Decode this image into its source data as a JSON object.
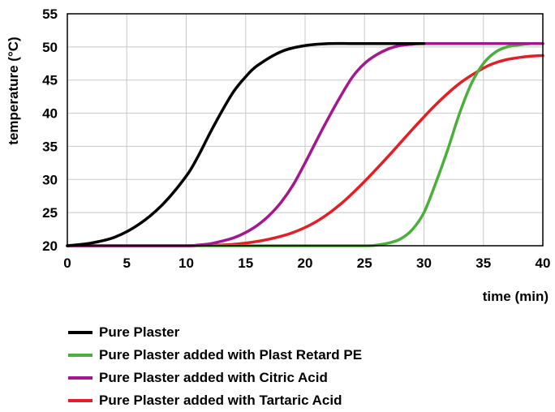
{
  "chart_data": {
    "type": "line",
    "title": "",
    "xlabel": "time (min)",
    "ylabel": "temperature (°C)",
    "xlim": [
      0,
      40
    ],
    "ylim": [
      20,
      55
    ],
    "xticks": [
      0,
      5,
      10,
      15,
      20,
      25,
      30,
      35,
      40
    ],
    "yticks": [
      20,
      25,
      30,
      35,
      40,
      45,
      50,
      55
    ],
    "grid": true,
    "legend_position": "bottom",
    "series": [
      {
        "name": "Pure Plaster",
        "color": "#000000",
        "x": [
          0,
          2,
          4,
          6,
          8,
          10,
          11,
          12,
          13,
          14,
          15,
          16,
          18,
          20,
          22,
          24,
          26,
          28,
          30
        ],
        "y": [
          20,
          20.4,
          21.3,
          23.2,
          26.2,
          30.5,
          33.5,
          37,
          40.3,
          43.3,
          45.5,
          47.2,
          49.3,
          50.2,
          50.5,
          50.5,
          50.5,
          50.5,
          50.5
        ]
      },
      {
        "name": "Pure Plaster added with Plast Retard PE",
        "color": "#4caf3c",
        "x": [
          0,
          10,
          20,
          25,
          26,
          27,
          28,
          29,
          30,
          31,
          32,
          33,
          34,
          35,
          36,
          37,
          38,
          39,
          40
        ],
        "y": [
          20,
          20,
          20,
          20,
          20.1,
          20.4,
          21,
          22.4,
          25,
          29.5,
          34.5,
          40,
          44.5,
          47.5,
          49.2,
          50,
          50.3,
          50.5,
          50.5
        ]
      },
      {
        "name": "Pure Plaster added with Citric Acid",
        "color": "#a3178f",
        "x": [
          0,
          5,
          10,
          11,
          12,
          13,
          14,
          15,
          16,
          17,
          18,
          19,
          20,
          21,
          22,
          23,
          24,
          25,
          26,
          27,
          28,
          29,
          30,
          35,
          40
        ],
        "y": [
          20,
          20,
          20,
          20.1,
          20.3,
          20.7,
          21.2,
          22,
          23.1,
          24.6,
          26.6,
          29.2,
          32.5,
          36,
          39.4,
          42.6,
          45.5,
          47.5,
          48.8,
          49.7,
          50.2,
          50.4,
          50.5,
          50.5,
          50.5
        ]
      },
      {
        "name": "Pure Plaster added with Tartaric Acid",
        "color": "#e31e24",
        "x": [
          0,
          5,
          10,
          13,
          15,
          17,
          19,
          21,
          23,
          25,
          27,
          29,
          31,
          33,
          35,
          36,
          37,
          38,
          39,
          40
        ],
        "y": [
          20,
          20,
          20,
          20.1,
          20.4,
          21,
          22,
          23.7,
          26.3,
          29.7,
          33.5,
          37.5,
          41.3,
          44.5,
          46.8,
          47.6,
          48.1,
          48.4,
          48.6,
          48.7
        ]
      }
    ]
  }
}
